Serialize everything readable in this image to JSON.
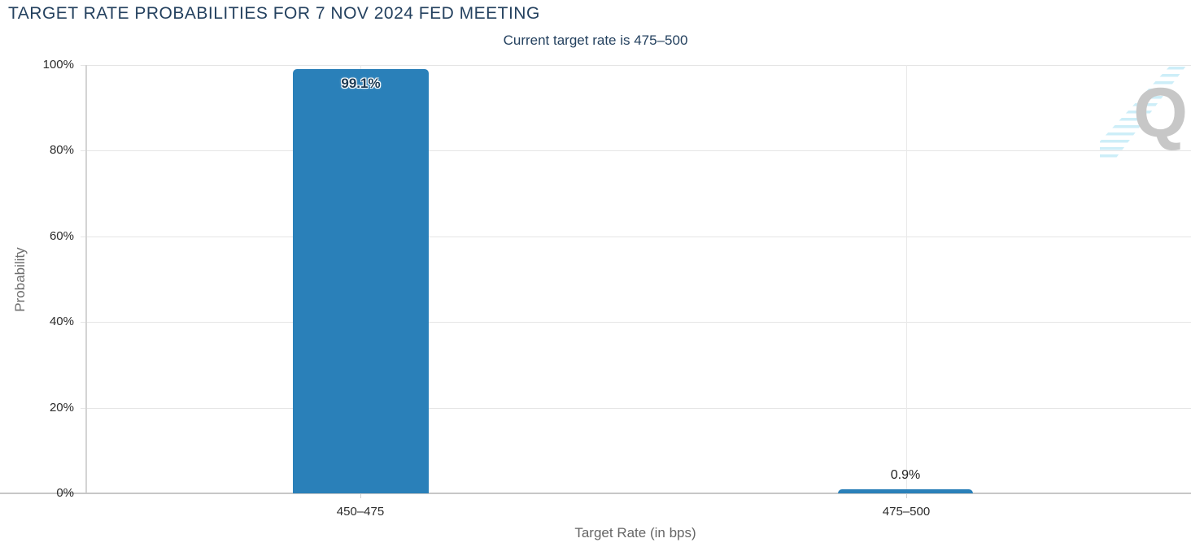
{
  "header": {
    "title": "TARGET RATE PROBABILITIES FOR 7 NOV 2024 FED MEETING",
    "subtitle": "Current target rate is 475–500"
  },
  "menu": {
    "icon": "hamburger-menu-icon"
  },
  "watermark": {
    "letter": "Q"
  },
  "chart_data": {
    "type": "bar",
    "title": "TARGET RATE PROBABILITIES FOR 7 NOV 2024 FED MEETING",
    "subtitle": "Current target rate is 475–500",
    "categories": [
      "450–475",
      "475–500"
    ],
    "values": [
      99.1,
      0.9
    ],
    "value_labels": [
      "99.1%",
      "0.9%"
    ],
    "xlabel": "Target Rate (in bps)",
    "ylabel": "Probability",
    "ylim": [
      0,
      100
    ],
    "yticks": [
      "0%",
      "20%",
      "40%",
      "60%",
      "80%",
      "100%"
    ],
    "grid": true,
    "legend": "none",
    "bar_color": "#2a80b9",
    "title_color": "#24415f",
    "axis_line_color": "#c7c7c7",
    "gridline_color": "#e5e5e5"
  }
}
